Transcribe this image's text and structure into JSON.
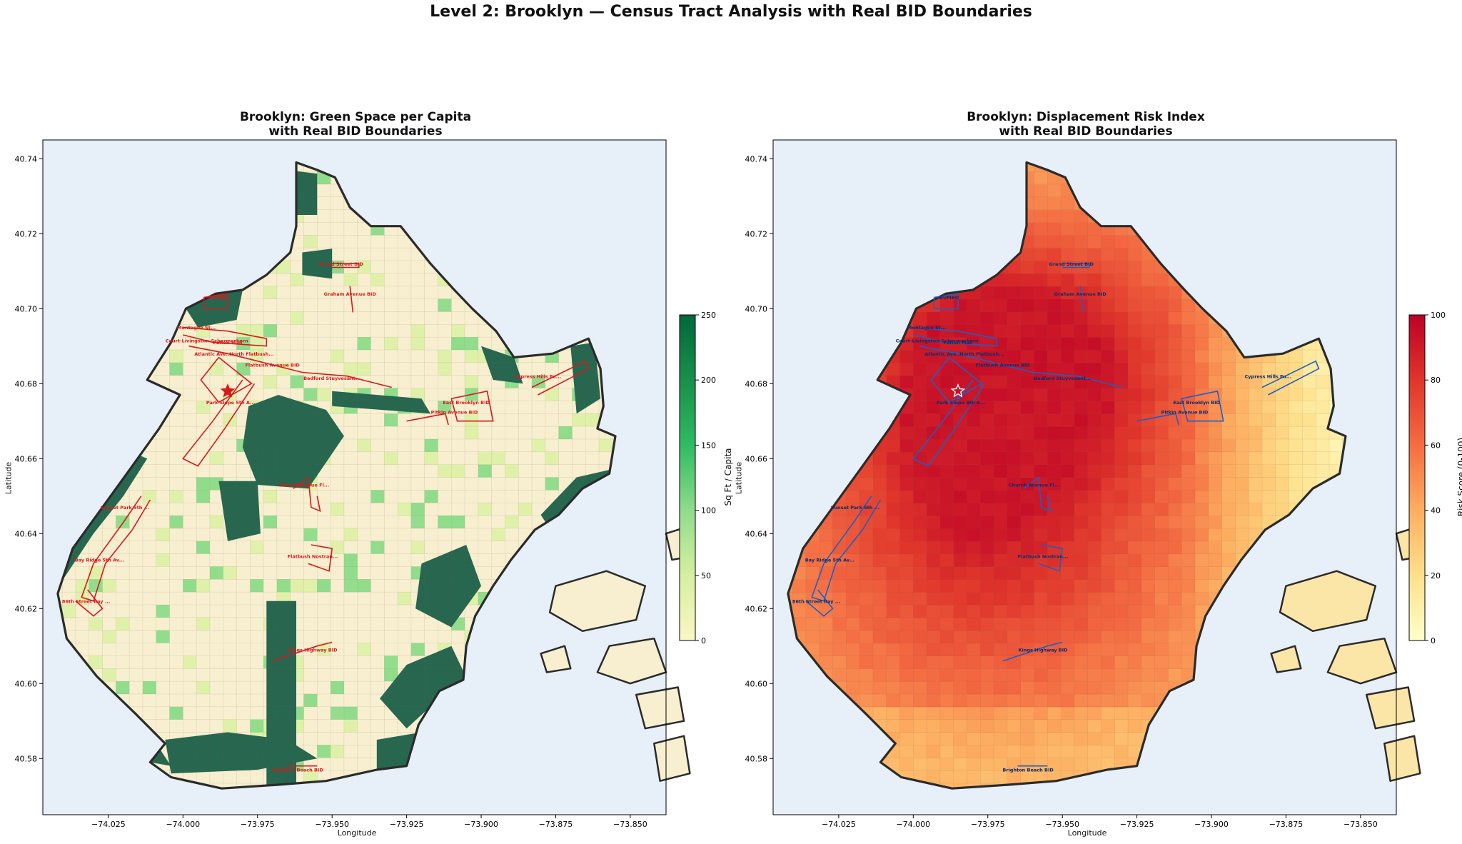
{
  "figure": {
    "title": "Level 2: Brooklyn — Census Tract Analysis with Real BID Boundaries"
  },
  "axes_common": {
    "xlabel": "Longitude",
    "ylabel": "Latitude",
    "x_ticks": [
      "−74.025",
      "−74.000",
      "−73.975",
      "−73.950",
      "−73.925",
      "−73.900",
      "−73.875",
      "−73.850"
    ],
    "x_tick_values": [
      -74.025,
      -74.0,
      -73.975,
      -73.95,
      -73.925,
      -73.9,
      -73.875,
      -73.85
    ],
    "y_ticks": [
      "40.58",
      "40.60",
      "40.62",
      "40.64",
      "40.66",
      "40.68",
      "40.70",
      "40.72",
      "40.74"
    ],
    "y_tick_values": [
      40.58,
      40.6,
      40.62,
      40.64,
      40.66,
      40.68,
      40.7,
      40.72,
      40.74
    ],
    "xlim": [
      -74.047,
      -73.838
    ],
    "ylim": [
      40.565,
      40.745
    ]
  },
  "bids": [
    {
      "label": "DUMBO",
      "lon": -73.988,
      "lat": 40.7025
    },
    {
      "label": "Graham Avenue BID",
      "lon": -73.944,
      "lat": 40.7035
    },
    {
      "label": "Grand Street BID",
      "lon": -73.947,
      "lat": 40.7115
    },
    {
      "label": "Montague St...",
      "lon": -73.9955,
      "lat": 40.6945
    },
    {
      "label": "Fulton Mall",
      "lon": -73.985,
      "lat": 40.6905
    },
    {
      "label": "Atlantic Ave...",
      "lon": -73.99,
      "lat": 40.6875
    },
    {
      "label": "Court-Livingston-Schermerhorn",
      "lon": -73.992,
      "lat": 40.691
    },
    {
      "label": "North Flatbush...",
      "lon": -73.977,
      "lat": 40.6875
    },
    {
      "label": "Park Slope 5th A...",
      "lon": -73.984,
      "lat": 40.6745
    },
    {
      "label": "Flatbush Avenue BID",
      "lon": -73.97,
      "lat": 40.6845
    },
    {
      "label": "Bedford Stuyvesant...",
      "lon": -73.95,
      "lat": 40.681
    },
    {
      "label": "Cypress Hills Fu...",
      "lon": -73.881,
      "lat": 40.6815
    },
    {
      "label": "East Brooklyn BID",
      "lon": -73.905,
      "lat": 40.6745
    },
    {
      "label": "Pitkin Avenue BID",
      "lon": -73.909,
      "lat": 40.672
    },
    {
      "label": "Sunset Park 5th ...",
      "lon": -74.0195,
      "lat": 40.6465
    },
    {
      "label": "Church Avenue Fl...",
      "lon": -73.9595,
      "lat": 40.6525
    },
    {
      "label": "Flatbush Nostran...",
      "lon": -73.9565,
      "lat": 40.6335
    },
    {
      "label": "Bay Ridge 5th Av...",
      "lon": -74.028,
      "lat": 40.6325
    },
    {
      "label": "86th Street Bay ...",
      "lon": -74.0325,
      "lat": 40.6215
    },
    {
      "label": "Kings Highway BID",
      "lon": -73.9565,
      "lat": 40.6085
    },
    {
      "label": "Brighton Beach BID",
      "lon": -73.9615,
      "lat": 40.5765
    }
  ],
  "panels": [
    {
      "title_line1": "Brooklyn: Green Space per Capita",
      "title_line2": "with Real BID Boundaries",
      "bid_color": "#d7191c",
      "colorbar": {
        "label": "Sq Ft / Capita",
        "min": 0,
        "max": 250,
        "ticks": [
          "0",
          "50",
          "100",
          "150",
          "200",
          "250"
        ],
        "colors": [
          "#fbf7c4",
          "#d6efa0",
          "#8fdc8b",
          "#2fbb64",
          "#1a8f4a",
          "#00683a"
        ]
      }
    },
    {
      "title_line1": "Brooklyn: Displacement Risk Index",
      "title_line2": "with Real BID Boundaries",
      "bid_color": "#1f5fc4",
      "colorbar": {
        "label": "Risk Score (0-100)",
        "min": 0,
        "max": 100,
        "ticks": [
          "0",
          "20",
          "40",
          "60",
          "80",
          "100"
        ],
        "colors": [
          "#ffffcc",
          "#fee08b",
          "#fdae61",
          "#f46d43",
          "#e0352b",
          "#bd0026"
        ]
      }
    }
  ],
  "style": {
    "water": "#e7eff8",
    "land_base": "#f7efcf",
    "park_green": "#27664f",
    "coast": "#2b2b2b"
  }
}
